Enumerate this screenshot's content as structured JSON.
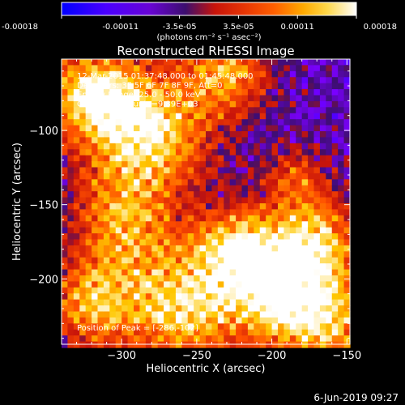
{
  "colorbar": {
    "ticks": [
      "-0.00018",
      "-0.00011",
      "-3.5e-05",
      "3.5e-05",
      "0.00011",
      "0.00018"
    ],
    "units_label": "(photons cm⁻² s⁻¹ asec⁻²)",
    "range": [
      -0.00018,
      0.00018
    ],
    "colors": [
      "#0000ff",
      "#7b00ff",
      "#ff2a00",
      "#ffc000",
      "#ffffff"
    ]
  },
  "chart_data": {
    "type": "heatmap",
    "title": "Reconstructed RHESSI Image",
    "xlabel": "Heliocentric X (arcsec)",
    "ylabel": "Heliocentric Y (arcsec)",
    "xlim": [
      -340,
      -148
    ],
    "ylim": [
      -244,
      -52
    ],
    "xticks": [
      -300,
      -250,
      -200,
      -150
    ],
    "yticks": [
      -100,
      -150,
      -200
    ],
    "annotations": [
      "12-Mar-2015 01:37:48.000 to 01:45:48.000",
      "Detectors: 3F 5F 6F 7F 8F 9F, Att=0",
      "Energy Range: 25.0 - 50.0 keV",
      "Clean    Total counts=9.89E+03"
    ],
    "peak_label": "Position of Peak = [-286,-102]",
    "peak": [
      -286,
      -102
    ],
    "colors": {
      "background": "#000000",
      "axis": "#ffffff",
      "low": "#3a1070"
    }
  },
  "footer": {
    "date": "6-Jun-2019 09:27"
  }
}
